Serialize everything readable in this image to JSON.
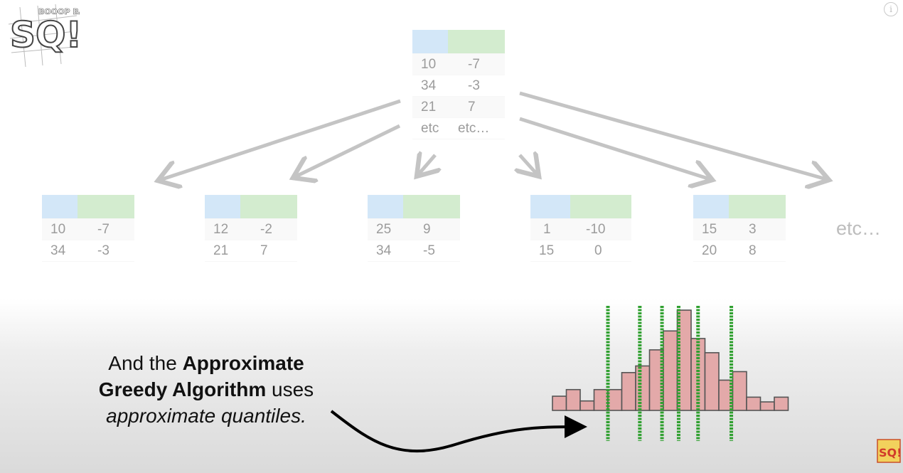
{
  "top_table": {
    "rows": [
      [
        "10",
        "-7"
      ],
      [
        "34",
        "-3"
      ],
      [
        "21",
        "7"
      ],
      [
        "etc",
        "etc…"
      ]
    ]
  },
  "leaf_tables": [
    {
      "rows": [
        [
          "10",
          "-7"
        ],
        [
          "34",
          "-3"
        ]
      ]
    },
    {
      "rows": [
        [
          "12",
          "-2"
        ],
        [
          "21",
          "7"
        ]
      ]
    },
    {
      "rows": [
        [
          "25",
          "9"
        ],
        [
          "34",
          "-5"
        ]
      ]
    },
    {
      "rows": [
        [
          "1",
          "-10"
        ],
        [
          "15",
          "0"
        ]
      ]
    },
    {
      "rows": [
        [
          "15",
          "3"
        ],
        [
          "20",
          "8"
        ]
      ]
    }
  ],
  "etc_label": "etc…",
  "caption": {
    "line1_plain": "And the ",
    "line1_bold": "Approximate",
    "line2_bold": "Greedy Algorithm",
    "line2_plain": " uses",
    "line3_italic": "approximate quantiles."
  },
  "info_icon_glyph": "i",
  "logo": {
    "text_main": "SQ!",
    "text_top": "BOOOP BAM!!",
    "text_small": "SQ!"
  },
  "colors": {
    "blue_header": "#a9d0f2",
    "green_header": "#a8dba0",
    "bar_fill": "#e3a9a9",
    "quantile_line": "#2fa02f"
  },
  "histogram": {
    "bar_heights": [
      1.5,
      2.2,
      1.0,
      2.2,
      2.2,
      4.0,
      4.7,
      6.4,
      8.4,
      10.6,
      7.6,
      6.1,
      3.2,
      4.1,
      1.4,
      0.9,
      1.4
    ],
    "quantile_bar_positions": [
      4,
      6.3,
      7.9,
      9.1,
      10.5,
      12.9
    ]
  }
}
